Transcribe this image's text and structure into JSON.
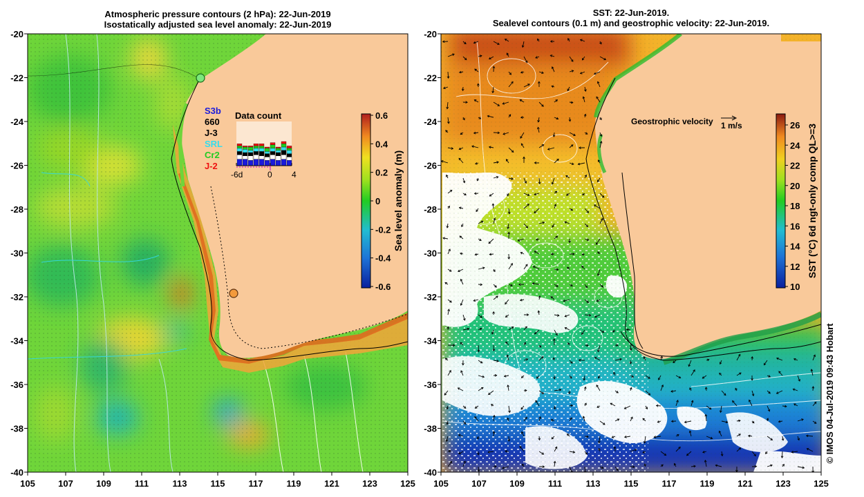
{
  "left_panel": {
    "title_line1": "Atmospheric pressure contours (2 hPa): 22-Jun-2019",
    "title_line2": "Isostatically adjusted sea level anomaly: 22-Jun-2019",
    "colorbar_label": "Sea level anomaly (m)",
    "colorbar_ticks": [
      "0.6",
      "0.4",
      "0.2",
      "0",
      "-0.2",
      "-0.4",
      "-0.6"
    ],
    "colorbar_range": [
      -0.6,
      0.6
    ],
    "missions": [
      {
        "label": "S3b",
        "color": "#1a1adb"
      },
      {
        "label": "660",
        "color": "#000000"
      },
      {
        "label": "J-3",
        "color": "#000000"
      },
      {
        "label": "SRL",
        "color": "#33ddee"
      },
      {
        "label": "Cr2",
        "color": "#22cc22"
      },
      {
        "label": "J-2",
        "color": "#ee1111"
      }
    ],
    "data_count": {
      "title": "Data count",
      "axis_labels": [
        "-6d",
        "0",
        "4"
      ]
    },
    "markers": [
      {
        "lon": 114.2,
        "lat": -22.0,
        "color": "#7ce87c"
      },
      {
        "lon": 115.9,
        "lat": -31.8,
        "color": "#f39a3c"
      }
    ]
  },
  "right_panel": {
    "title_line1": "SST: 22-Jun-2019.",
    "title_line2": "Sealevel contours (0.1 m) and geostrophic velocity: 22-Jun-2019.",
    "colorbar_label": "SST (°C) 6d ngt-only comp QL>=3",
    "colorbar_ticks": [
      "26",
      "24",
      "22",
      "20",
      "18",
      "16",
      "14",
      "12",
      "10"
    ],
    "colorbar_range": [
      10,
      27
    ],
    "velocity_legend": "Geostrophic velocity",
    "velocity_scale": "1 m/s"
  },
  "axes": {
    "lon_ticks": [
      "105",
      "107",
      "109",
      "111",
      "113",
      "115",
      "117",
      "119",
      "121",
      "123",
      "125"
    ],
    "lat_ticks": [
      "-20",
      "-22",
      "-24",
      "-26",
      "-28",
      "-30",
      "-32",
      "-34",
      "-36",
      "-38",
      "-40"
    ],
    "lon_range": [
      105,
      125
    ],
    "lat_range": [
      -40,
      -20
    ]
  },
  "credit": "© IMOS 04-Jul-2019 09:43 Hobart",
  "colors": {
    "land": "#f9c99a",
    "sla_low": "#0a1f9e",
    "sla_mid": "#22cc22",
    "sla_high": "#b01e1e",
    "sst_low": "#0a1f9e",
    "sst_high": "#8b1a10"
  }
}
